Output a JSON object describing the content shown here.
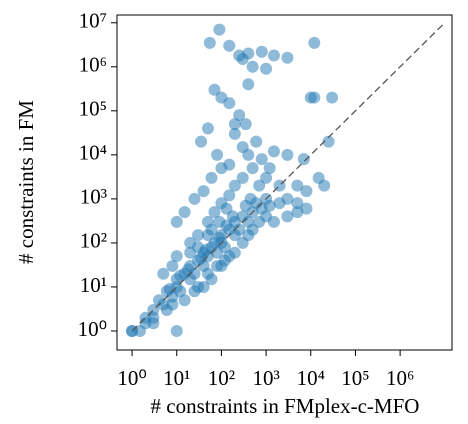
{
  "chart_data": {
    "type": "scatter",
    "xlabel": "# constraints in FMplex-c-MFO",
    "ylabel": "# constraints in FM",
    "log_x": true,
    "log_y": true,
    "grid": false,
    "xlim": [
      0.46,
      14500000
    ],
    "ylim": [
      0.37,
      15000000
    ],
    "xticks": [
      {
        "value": 1,
        "label": "10⁰"
      },
      {
        "value": 10,
        "label": "10¹"
      },
      {
        "value": 100,
        "label": "10²"
      },
      {
        "value": 1000,
        "label": "10³"
      },
      {
        "value": 10000,
        "label": "10⁴"
      },
      {
        "value": 100000,
        "label": "10⁵"
      },
      {
        "value": 1000000,
        "label": "10⁶"
      }
    ],
    "yticks": [
      {
        "value": 1,
        "label": "10⁰"
      },
      {
        "value": 10,
        "label": "10¹"
      },
      {
        "value": 100,
        "label": "10²"
      },
      {
        "value": 1000,
        "label": "10³"
      },
      {
        "value": 10000,
        "label": "10⁴"
      },
      {
        "value": 100000,
        "label": "10⁵"
      },
      {
        "value": 1000000,
        "label": "10⁶"
      },
      {
        "value": 10000000,
        "label": "10⁷"
      }
    ],
    "reference_line": {
      "x": [
        1,
        10000000
      ],
      "y": [
        1,
        10000000
      ],
      "style": "dashed",
      "color": "#555555"
    },
    "series": [
      {
        "color": "#1f77b4",
        "x": [
          1,
          1,
          1.5,
          10,
          2,
          2,
          3,
          3,
          4,
          5,
          6,
          8,
          10,
          10,
          12,
          15,
          20,
          20,
          25,
          30,
          40,
          40,
          50,
          60,
          80,
          100,
          100,
          120,
          150,
          200,
          200,
          250,
          300,
          400,
          500,
          600,
          800,
          1000,
          1200,
          30,
          20,
          50,
          70,
          100,
          150,
          200,
          300,
          100,
          60,
          40,
          500,
          800,
          1000,
          2000,
          3000,
          5000,
          2000,
          1500,
          3000,
          5000,
          8000,
          400,
          600,
          300,
          200,
          150,
          80,
          50,
          35,
          100,
          70,
          150,
          250,
          350,
          200,
          400,
          300,
          500,
          1000,
          250,
          400,
          800,
          1500,
          3000,
          90,
          55,
          150,
          12000,
          10000,
          12000,
          30000,
          25000,
          15000,
          20000,
          5000,
          8000,
          7000,
          1500,
          3000,
          10,
          15,
          25,
          10,
          5,
          8,
          30,
          50,
          80,
          120,
          200,
          300,
          400,
          150,
          60,
          15,
          25,
          6,
          3,
          8,
          40,
          100,
          500,
          700,
          1000,
          700,
          1200,
          450,
          350,
          180,
          130,
          90,
          70,
          45,
          35,
          18,
          12,
          7,
          20,
          30,
          60,
          90,
          130,
          50
        ],
        "values": [
          1,
          1,
          1,
          1,
          1.5,
          2,
          3,
          2,
          5,
          4,
          8,
          6,
          10,
          15,
          8,
          20,
          15,
          30,
          20,
          40,
          30,
          60,
          50,
          80,
          60,
          100,
          150,
          80,
          200,
          150,
          300,
          200,
          400,
          300,
          500,
          800,
          600,
          1000,
          700,
          150,
          100,
          300,
          500,
          800,
          1200,
          2000,
          3000,
          5000,
          3000,
          1500,
          5000,
          8000,
          3000,
          2000,
          1000,
          500,
          800,
          300,
          400,
          2000,
          1500,
          10000,
          20000,
          15000,
          30000,
          6000,
          10000,
          40000,
          20000,
          200000,
          300000,
          150000,
          80000,
          50000,
          50000,
          400000,
          1500000,
          1000000,
          900000,
          1800000,
          2000000,
          2200000,
          1800000,
          1600000,
          7000000,
          3500000,
          3000000,
          3500000,
          200000,
          200000,
          200000,
          20000,
          3000,
          2000,
          800,
          600,
          8000,
          12000,
          10000,
          300,
          500,
          1000,
          50,
          20,
          30,
          10,
          20,
          30,
          40,
          60,
          100,
          150,
          50,
          15,
          5,
          8,
          3,
          1.5,
          4,
          10,
          30,
          200,
          300,
          400,
          2000,
          5000,
          1000,
          700,
          400,
          250,
          130,
          100,
          70,
          45,
          25,
          18,
          9,
          60,
          80,
          200,
          300,
          600,
          150
        ]
      }
    ]
  }
}
